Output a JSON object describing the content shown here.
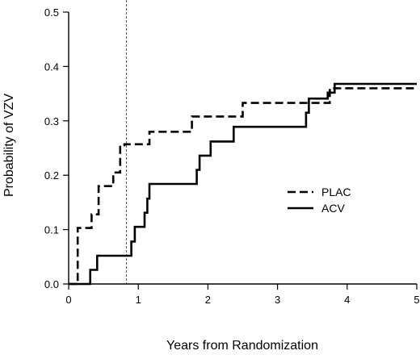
{
  "chart_data": {
    "type": "line",
    "step": true,
    "xlabel": "Years from Randomization",
    "ylabel": "Probability of VZV",
    "xlim": [
      0,
      5
    ],
    "ylim": [
      0,
      0.5
    ],
    "x_ticks": [
      0,
      1,
      2,
      3,
      4,
      5
    ],
    "y_ticks": [
      0.0,
      0.1,
      0.2,
      0.3,
      0.4,
      0.5
    ],
    "x_tick_labels": [
      "0",
      "1",
      "2",
      "3",
      "4",
      "5"
    ],
    "y_tick_labels": [
      "0.0",
      "0.1",
      "0.2",
      "0.3",
      "0.4",
      "0.5"
    ],
    "grid": false,
    "legend_position": "right",
    "reference_line_x": 0.83,
    "series": [
      {
        "name": "PLAC",
        "style": "dashed",
        "color": "#000000",
        "x": [
          0,
          0.13,
          0.33,
          0.43,
          0.64,
          0.74,
          0.8,
          1.16,
          1.77,
          2.5,
          3.75,
          5.0
        ],
        "y": [
          0,
          0.103,
          0.128,
          0.18,
          0.205,
          0.255,
          0.257,
          0.28,
          0.308,
          0.333,
          0.36,
          0.36
        ]
      },
      {
        "name": "ACV",
        "style": "solid",
        "color": "#000000",
        "x": [
          0,
          0.31,
          0.41,
          0.9,
          0.95,
          1.09,
          1.13,
          1.16,
          1.84,
          1.88,
          2.04,
          2.37,
          3.41,
          3.45,
          3.72,
          3.82,
          5.0
        ],
        "y": [
          0,
          0.026,
          0.052,
          0.078,
          0.105,
          0.131,
          0.157,
          0.184,
          0.21,
          0.236,
          0.262,
          0.289,
          0.315,
          0.341,
          0.352,
          0.368,
          0.368
        ]
      }
    ]
  }
}
